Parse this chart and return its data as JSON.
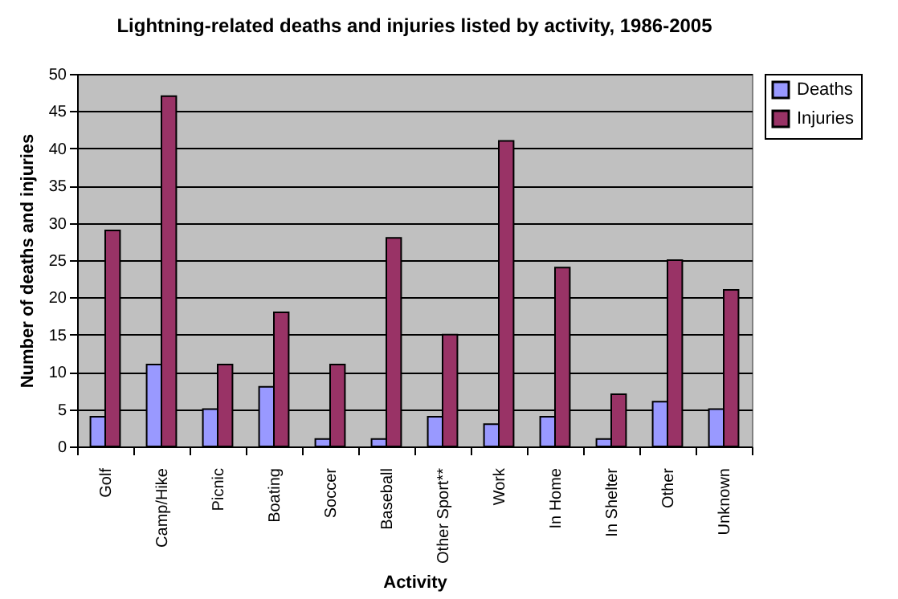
{
  "chart_data": {
    "type": "bar",
    "title": "Lightning-related deaths and injuries listed by activity, 1986-2005",
    "xlabel": "Activity",
    "ylabel": "Number of deaths and injuries",
    "categories": [
      "Golf",
      "Camp/Hike",
      "Picnic",
      "Boating",
      "Soccer",
      "Baseball",
      "Other Sport**",
      "Work",
      "In Home",
      "In Shelter",
      "Other",
      "Unknown"
    ],
    "series": [
      {
        "name": "Deaths",
        "color": "#9999ff",
        "values": [
          4,
          11,
          5,
          8,
          1,
          1,
          4,
          3,
          4,
          1,
          6,
          5
        ]
      },
      {
        "name": "Injuries",
        "color": "#993366",
        "values": [
          29,
          47,
          11,
          18,
          11,
          28,
          15,
          41,
          24,
          7,
          25,
          21
        ]
      }
    ],
    "ylim": [
      0,
      50
    ],
    "yticks": [
      0,
      5,
      10,
      15,
      20,
      25,
      30,
      35,
      40,
      45,
      50
    ],
    "grid": "y",
    "legend": "right"
  }
}
